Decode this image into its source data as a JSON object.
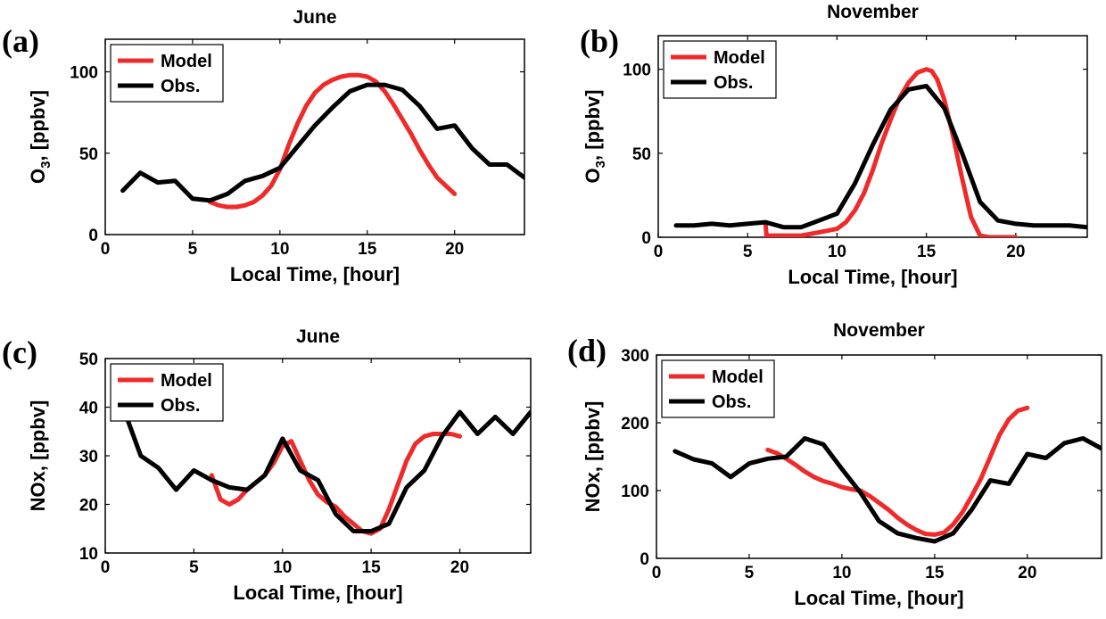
{
  "chart_data": [
    {
      "type": "line",
      "panel_label": "(a)",
      "title": "June",
      "xlabel": "Local Time, [hour]",
      "ylabel": "O3, [ppbv]",
      "ylabel_main": "O",
      "ylabel_sub": "3",
      "ylabel_rest": ", [ppbv]",
      "xlim": [
        0,
        24
      ],
      "ylim": [
        0,
        120
      ],
      "xticks": [
        0,
        5,
        10,
        15,
        20
      ],
      "yticks": [
        0,
        50,
        100
      ],
      "legend": "top-left",
      "series": [
        {
          "name": "Model",
          "color": "#ee2a2a",
          "x": [
            6,
            6.5,
            7,
            7.5,
            8,
            8.5,
            9,
            9.5,
            10,
            10.5,
            11,
            11.5,
            12,
            12.5,
            13,
            13.5,
            14,
            14.5,
            15,
            15.5,
            16,
            16.5,
            17,
            17.5,
            18,
            18.5,
            19,
            19.5,
            20
          ],
          "y": [
            20,
            18,
            17,
            17,
            18,
            20,
            24,
            30,
            40,
            55,
            68,
            79,
            87,
            92,
            95,
            97,
            98,
            98,
            97,
            94,
            88,
            80,
            71,
            62,
            52,
            43,
            35,
            30,
            25
          ]
        },
        {
          "name": "Obs.",
          "color": "#000000",
          "x": [
            1,
            2,
            3,
            4,
            5,
            6,
            7,
            8,
            9,
            10,
            11,
            12,
            13,
            14,
            15,
            16,
            17,
            18,
            19,
            20,
            21,
            22,
            23,
            24
          ],
          "y": [
            27,
            38,
            32,
            33,
            22,
            21,
            25,
            33,
            36,
            41,
            54,
            67,
            78,
            88,
            92,
            92,
            89,
            79,
            65,
            67,
            53,
            43,
            43,
            35
          ]
        }
      ]
    },
    {
      "type": "line",
      "panel_label": "(b)",
      "title": "November",
      "xlabel": "Local Time, [hour]",
      "ylabel": "O3, [ppbv]",
      "ylabel_main": "O",
      "ylabel_sub": "3",
      "ylabel_rest": ", [ppbv]",
      "xlim": [
        0,
        24
      ],
      "ylim": [
        0,
        120
      ],
      "xticks": [
        0,
        5,
        10,
        15,
        20
      ],
      "yticks": [
        0,
        50,
        100
      ],
      "legend": "top-left",
      "series": [
        {
          "name": "Model",
          "color": "#ee2a2a",
          "x": [
            6,
            6.05,
            7,
            8,
            9,
            10,
            10.5,
            11,
            11.5,
            12,
            12.5,
            13,
            13.5,
            14,
            14.5,
            15,
            15.3,
            15.6,
            16,
            16.5,
            17,
            17.5,
            18,
            18.5,
            19,
            20
          ],
          "y": [
            8,
            1,
            1,
            1,
            3,
            5,
            9,
            16,
            26,
            40,
            56,
            70,
            83,
            92,
            98,
            100,
            99,
            94,
            82,
            60,
            35,
            12,
            1,
            0,
            0,
            0
          ]
        },
        {
          "name": "Obs.",
          "color": "#000000",
          "x": [
            1,
            2,
            3,
            4,
            5,
            6,
            7,
            8,
            9,
            10,
            11,
            12,
            13,
            14,
            15,
            16,
            17,
            18,
            19,
            20,
            21,
            22,
            23,
            24
          ],
          "y": [
            7,
            7,
            8,
            7,
            8,
            9,
            6,
            6,
            10,
            14,
            32,
            55,
            76,
            88,
            90,
            77,
            50,
            21,
            10,
            8,
            7,
            7,
            7,
            6
          ]
        }
      ]
    },
    {
      "type": "line",
      "panel_label": "(c)",
      "title": "June",
      "xlabel": "Local Time, [hour]",
      "ylabel": "NOx, [ppbv]",
      "xlim": [
        0,
        24
      ],
      "ylim": [
        10,
        50
      ],
      "xticks": [
        0,
        5,
        10,
        15,
        20
      ],
      "yticks": [
        10,
        20,
        30,
        40,
        50
      ],
      "legend": "top-left",
      "series": [
        {
          "name": "Model",
          "color": "#ee2a2a",
          "x": [
            6,
            6.5,
            7,
            7.5,
            8,
            8.5,
            9,
            9.5,
            10,
            10.5,
            11,
            11.5,
            12,
            12.5,
            13,
            13.5,
            14,
            14.5,
            15,
            15.5,
            16,
            16.5,
            17,
            17.5,
            18,
            18.5,
            19,
            19.5,
            20
          ],
          "y": [
            26,
            21,
            20,
            21,
            23,
            24.5,
            26,
            28.5,
            32,
            33,
            29,
            25,
            22,
            20.5,
            19.5,
            17.5,
            16,
            14.5,
            14,
            15,
            19,
            24,
            29,
            32.5,
            34,
            34.5,
            34.5,
            34.5,
            34
          ]
        },
        {
          "name": "Obs.",
          "color": "#000000",
          "x": [
            1,
            2,
            3,
            4,
            5,
            6,
            7,
            8,
            9,
            10,
            11,
            12,
            13,
            14,
            15,
            16,
            17,
            18,
            19,
            20,
            21,
            22,
            23,
            24
          ],
          "y": [
            40,
            30,
            27.5,
            23,
            27,
            25,
            23.5,
            23,
            26,
            33.5,
            27,
            25,
            18,
            14.5,
            14.5,
            16,
            23.5,
            27,
            34,
            39,
            34.5,
            38,
            34.5,
            39
          ]
        }
      ]
    },
    {
      "type": "line",
      "panel_label": "(d)",
      "title": "November",
      "xlabel": "Local Time, [hour]",
      "ylabel": "NOx, [ppbv]",
      "xlim": [
        0,
        24
      ],
      "ylim": [
        0,
        300
      ],
      "xticks": [
        0,
        5,
        10,
        15,
        20
      ],
      "yticks": [
        0,
        100,
        200,
        300
      ],
      "legend": "top-left",
      "series": [
        {
          "name": "Model",
          "color": "#ee2a2a",
          "x": [
            6,
            6.5,
            7,
            7.5,
            8,
            8.5,
            9,
            9.5,
            10,
            10.5,
            11,
            11.5,
            12,
            12.5,
            13,
            13.5,
            14,
            14.5,
            15,
            15.5,
            16,
            16.5,
            17,
            17.5,
            18,
            18.5,
            19,
            19.5,
            20
          ],
          "y": [
            160,
            155,
            147,
            138,
            128,
            120,
            114,
            110,
            105,
            102,
            100,
            92,
            82,
            72,
            60,
            50,
            42,
            36,
            35,
            38,
            50,
            68,
            92,
            118,
            150,
            182,
            205,
            218,
            222
          ]
        },
        {
          "name": "Obs.",
          "color": "#000000",
          "x": [
            1,
            2,
            3,
            4,
            5,
            6,
            7,
            8,
            9,
            10,
            11,
            12,
            13,
            14,
            15,
            16,
            17,
            18,
            19,
            20,
            21,
            22,
            23,
            24
          ],
          "y": [
            158,
            146,
            140,
            120,
            140,
            147,
            150,
            177,
            168,
            132,
            97,
            55,
            37,
            30,
            25,
            37,
            72,
            115,
            110,
            154,
            148,
            170,
            177,
            162
          ]
        }
      ]
    }
  ]
}
